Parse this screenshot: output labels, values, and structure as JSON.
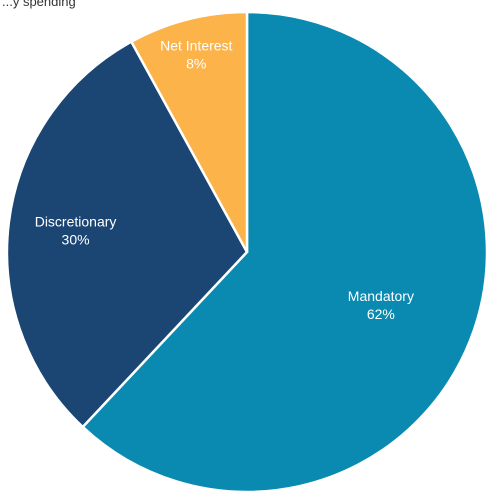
{
  "header_fragment": "...y spending",
  "chart_data": {
    "type": "pie",
    "title": "",
    "slices": [
      {
        "label": "Mandatory",
        "value": 62,
        "value_label": "62%",
        "color": "#0a8ab0"
      },
      {
        "label": "Discretionary",
        "value": 30,
        "value_label": "30%",
        "color": "#1b4674"
      },
      {
        "label": "Net Interest",
        "value": 8,
        "value_label": "8%",
        "color": "#fbb34a"
      }
    ],
    "legend": "none",
    "start": "12 o'clock, clockwise"
  }
}
